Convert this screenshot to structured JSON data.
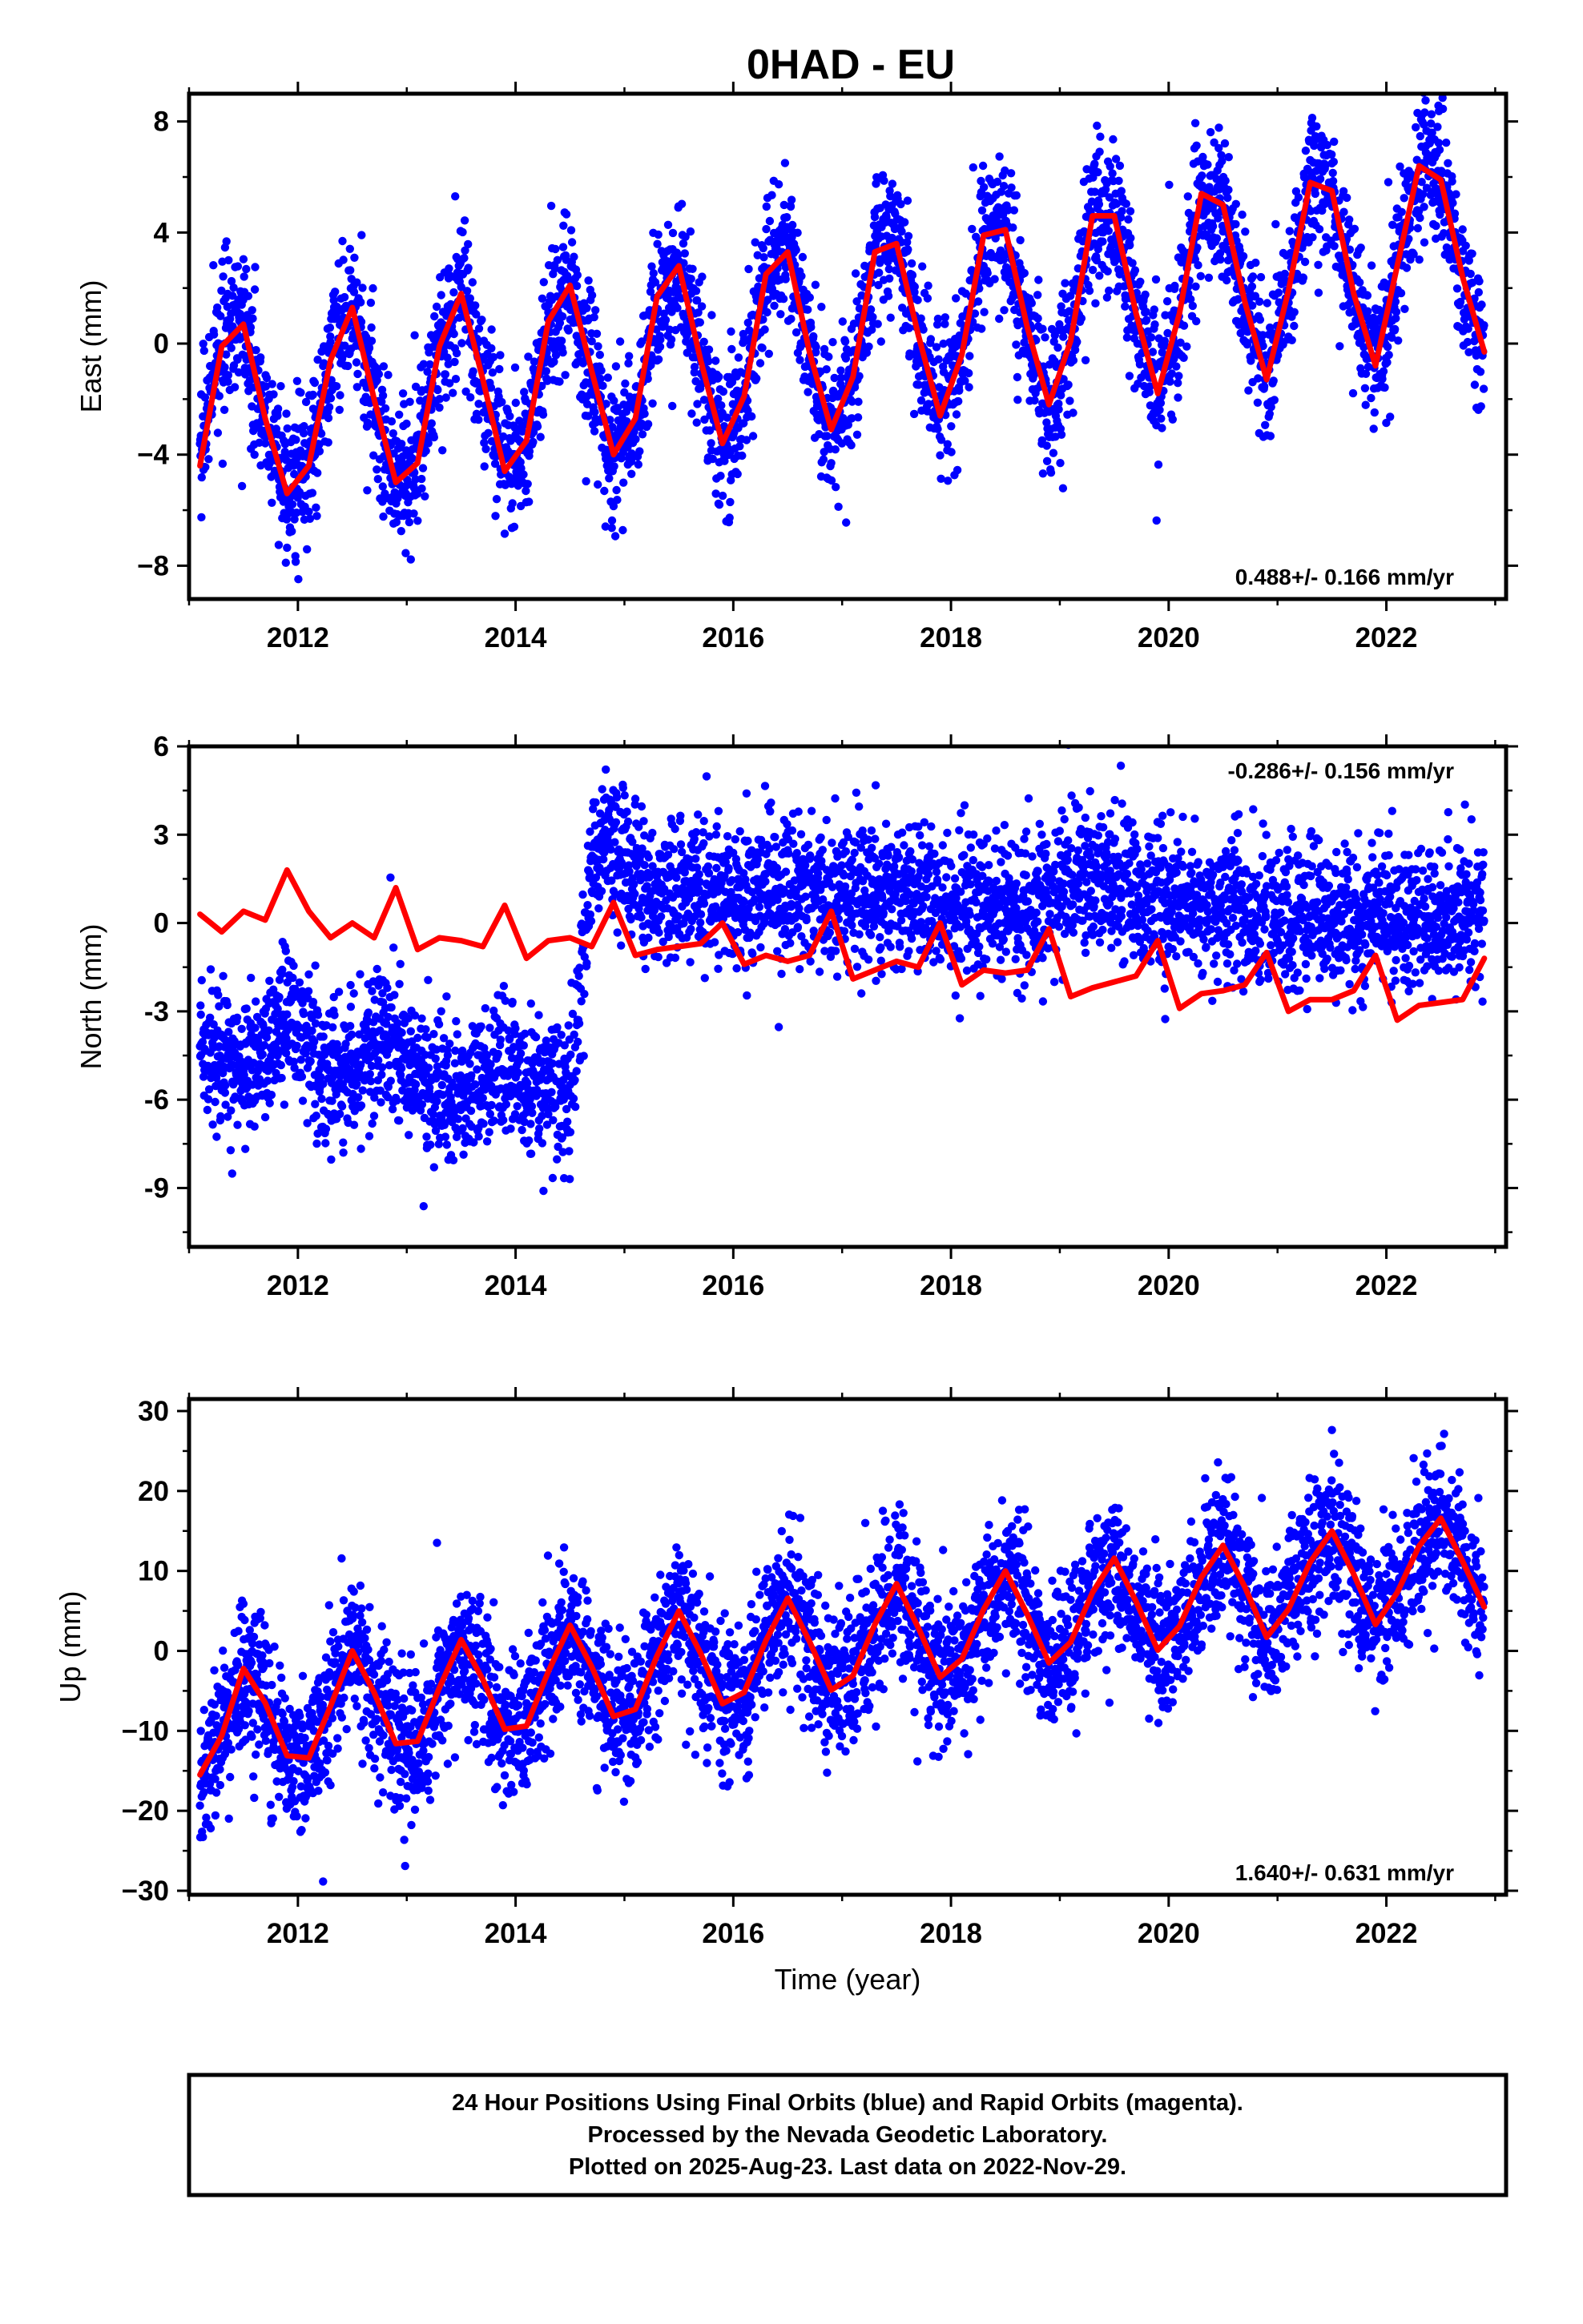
{
  "figure": {
    "title": "0HAD - EU",
    "footer": [
      "24 Hour Positions Using Final Orbits (blue) and Rapid Orbits (magenta).",
      "Processed by the Nevada Geodetic Laboratory.",
      "Plotted on 2025-Aug-23. Last data on 2022-Nov-29."
    ],
    "colors": {
      "final_orbits": "#0000ff",
      "model_fit": "#ff0000",
      "frame": "#000000"
    }
  },
  "chart_data": [
    {
      "type": "scatter",
      "ylabel": "East (mm)",
      "xlabel": "",
      "rate_label": "0.488+/- 0.166 mm/yr",
      "rate_position": "bottom-right",
      "xlim": [
        2011.0,
        2023.1
      ],
      "ylim": [
        -9.2,
        9.0
      ],
      "xticks": [
        2012,
        2014,
        2016,
        2018,
        2020,
        2022
      ],
      "yticks": [
        -8,
        -4,
        0,
        4,
        8
      ],
      "ytick_labels": [
        "−8",
        "−4",
        "0",
        "4",
        "8"
      ],
      "grid": false,
      "data_range": [
        2011.1,
        2022.9
      ],
      "series": [
        {
          "kind": "points",
          "color": "#0000ff",
          "x": [
            2011.1,
            2011.3,
            2011.5,
            2011.7,
            2011.9,
            2012.1,
            2012.3,
            2012.5,
            2012.7,
            2012.9,
            2013.1,
            2013.3,
            2013.5,
            2013.7,
            2013.9,
            2014.1,
            2014.3,
            2014.5,
            2014.7,
            2014.9,
            2015.1,
            2015.3,
            2015.5,
            2015.7,
            2015.9,
            2016.1,
            2016.3,
            2016.5,
            2016.7,
            2016.9,
            2017.1,
            2017.3,
            2017.5,
            2017.7,
            2017.9,
            2018.1,
            2018.3,
            2018.5,
            2018.7,
            2018.9,
            2019.1,
            2019.3,
            2019.5,
            2019.7,
            2019.9,
            2020.1,
            2020.3,
            2020.5,
            2020.7,
            2020.9,
            2021.1,
            2021.3,
            2021.5,
            2021.7,
            2021.9,
            2022.1,
            2022.3,
            2022.5,
            2022.7,
            2022.9
          ],
          "y": [
            -3.6,
            0.2,
            0.7,
            -2.7,
            -5.4,
            -4.4,
            -0.6,
            1.3,
            -2.0,
            -5.0,
            -4.3,
            -0.1,
            1.8,
            -1.3,
            -4.6,
            -3.5,
            0.8,
            2.1,
            -1.0,
            -4.0,
            -2.7,
            1.7,
            2.8,
            -0.6,
            -3.6,
            -1.9,
            2.5,
            3.3,
            -0.3,
            -3.1,
            -1.2,
            3.3,
            3.6,
            0.3,
            -2.6,
            -0.4,
            3.9,
            4.1,
            0.6,
            -2.2,
            0.1,
            4.6,
            4.6,
            1.1,
            -1.8,
            1.1,
            5.4,
            5.0,
            1.5,
            -1.3,
            1.9,
            5.8,
            5.5,
            1.8,
            -0.8,
            2.8,
            6.4,
            5.9,
            2.4,
            -0.1
          ]
        },
        {
          "kind": "model",
          "color": "#ff0000",
          "x": [
            2011.1,
            2011.3,
            2011.5,
            2011.7,
            2011.9,
            2012.1,
            2012.3,
            2012.5,
            2012.7,
            2012.9,
            2013.1,
            2013.3,
            2013.5,
            2013.7,
            2013.9,
            2014.1,
            2014.3,
            2014.5,
            2014.7,
            2014.9,
            2015.1,
            2015.3,
            2015.5,
            2015.7,
            2015.9,
            2016.1,
            2016.3,
            2016.5,
            2016.7,
            2016.9,
            2017.1,
            2017.3,
            2017.5,
            2017.7,
            2017.9,
            2018.1,
            2018.3,
            2018.5,
            2018.7,
            2018.9,
            2019.1,
            2019.3,
            2019.5,
            2019.7,
            2019.9,
            2020.1,
            2020.3,
            2020.5,
            2020.7,
            2020.9,
            2021.1,
            2021.3,
            2021.5,
            2021.7,
            2021.9,
            2022.1,
            2022.3,
            2022.5,
            2022.7,
            2022.9
          ],
          "y": [
            -4.4,
            -0.1,
            0.7,
            -2.7,
            -5.4,
            -4.4,
            -0.6,
            1.3,
            -2.0,
            -5.0,
            -4.3,
            -0.1,
            1.8,
            -1.3,
            -4.6,
            -3.5,
            0.8,
            2.1,
            -1.0,
            -4.0,
            -2.7,
            1.7,
            2.8,
            -0.6,
            -3.6,
            -1.9,
            2.5,
            3.3,
            -0.3,
            -3.1,
            -1.2,
            3.3,
            3.6,
            0.3,
            -2.6,
            -0.4,
            3.9,
            4.1,
            0.6,
            -2.2,
            0.1,
            4.6,
            4.6,
            1.1,
            -1.8,
            1.1,
            5.4,
            5.0,
            1.5,
            -1.3,
            1.9,
            5.8,
            5.5,
            1.8,
            -0.8,
            2.8,
            6.4,
            5.9,
            2.4,
            -0.3
          ]
        }
      ]
    },
    {
      "type": "scatter",
      "ylabel": "North (mm)",
      "xlabel": "",
      "rate_label": "-0.286+/- 0.156 mm/yr",
      "rate_position": "top-right",
      "xlim": [
        2011.0,
        2023.1
      ],
      "ylim": [
        -11.0,
        6.0
      ],
      "xticks": [
        2012,
        2014,
        2016,
        2018,
        2020,
        2022
      ],
      "yticks": [
        -9,
        -6,
        -3,
        0,
        3,
        6
      ],
      "ytick_labels": [
        "-9",
        "-6",
        "-3",
        "0",
        "3",
        "6"
      ],
      "grid": false,
      "data_range": [
        2011.1,
        2022.9
      ],
      "series": [
        {
          "kind": "points",
          "color": "#0000ff",
          "x": [
            2011.1,
            2011.3,
            2011.5,
            2011.7,
            2011.9,
            2012.1,
            2012.3,
            2012.5,
            2012.7,
            2012.9,
            2013.1,
            2013.3,
            2013.5,
            2013.7,
            2013.9,
            2014.1,
            2014.3,
            2014.5,
            2014.7,
            2014.9,
            2015.1,
            2015.3,
            2015.5,
            2015.7,
            2015.9,
            2016.1,
            2016.3,
            2016.5,
            2016.7,
            2016.9,
            2017.1,
            2017.3,
            2017.5,
            2017.7,
            2017.9,
            2018.1,
            2018.3,
            2018.5,
            2018.7,
            2018.9,
            2019.1,
            2019.3,
            2019.5,
            2019.7,
            2019.9,
            2020.1,
            2020.3,
            2020.5,
            2020.7,
            2020.9,
            2021.1,
            2021.3,
            2021.5,
            2021.7,
            2021.9,
            2022.1,
            2022.3,
            2022.5,
            2022.7,
            2022.9
          ],
          "y": [
            -4.0,
            -4.3,
            -5.0,
            -4.5,
            -3.2,
            -4.0,
            -5.6,
            -5.0,
            -4.2,
            -4.0,
            -5.3,
            -5.6,
            -6.0,
            -5.3,
            -4.9,
            -5.5,
            -5.6,
            -5.8,
            2.3,
            2.9,
            1.4,
            0.8,
            0.9,
            1.0,
            0.8,
            0.8,
            1.3,
            1.5,
            1.0,
            1.2,
            0.7,
            0.9,
            0.8,
            0.9,
            0.3,
            0.6,
            0.9,
            0.6,
            0.7,
            0.9,
            1.3,
            1.6,
            1.4,
            1.0,
            0.5,
            0.7,
            0.5,
            0.7,
            0.6,
            0.1,
            0.1,
            0.2,
            0.2,
            0.1,
            0.3,
            0.1,
            0.0,
            0.2,
            0.3,
            0.7
          ]
        },
        {
          "kind": "model",
          "color": "#ff0000",
          "x": [
            2011.1,
            2011.3,
            2011.5,
            2011.7,
            2011.9,
            2012.1,
            2012.3,
            2012.5,
            2012.7,
            2012.9,
            2013.1,
            2013.3,
            2013.5,
            2013.7,
            2013.9,
            2014.1,
            2014.3,
            2014.5,
            2014.7,
            2014.9,
            2015.1,
            2015.3,
            2015.5,
            2015.7,
            2015.9,
            2016.1,
            2016.3,
            2016.5,
            2016.7,
            2016.9,
            2017.1,
            2017.3,
            2017.5,
            2017.7,
            2017.9,
            2018.1,
            2018.3,
            2018.5,
            2018.7,
            2018.9,
            2019.1,
            2019.3,
            2019.5,
            2019.7,
            2019.9,
            2020.1,
            2020.3,
            2020.5,
            2020.7,
            2020.9,
            2021.1,
            2021.3,
            2021.5,
            2021.7,
            2021.9,
            2022.1,
            2022.3,
            2022.5,
            2022.7,
            2022.9
          ],
          "y": [
            0.3,
            -0.3,
            0.4,
            0.1,
            1.8,
            0.4,
            -0.5,
            0.0,
            -0.5,
            1.2,
            -0.9,
            -0.5,
            -0.6,
            -0.8,
            0.6,
            -1.2,
            -0.6,
            -0.5,
            -0.8,
            0.7,
            -1.1,
            -0.9,
            -0.8,
            -0.7,
            0.0,
            -1.4,
            -1.1,
            -1.3,
            -1.1,
            0.4,
            -1.9,
            -1.6,
            -1.3,
            -1.5,
            0.0,
            -2.1,
            -1.6,
            -1.7,
            -1.6,
            -0.2,
            -2.5,
            -2.2,
            -2.0,
            -1.8,
            -0.6,
            -2.9,
            -2.4,
            -2.3,
            -2.1,
            -1.0,
            -3.0,
            -2.6,
            -2.6,
            -2.3,
            -1.1,
            -3.3,
            -2.8,
            -2.7,
            -2.6,
            -1.2
          ]
        }
      ]
    },
    {
      "type": "scatter",
      "ylabel": "Up (mm)",
      "xlabel": "Time (year)",
      "rate_label": "1.640+/- 0.631 mm/yr",
      "rate_position": "bottom-right",
      "xlim": [
        2011.0,
        2023.1
      ],
      "ylim": [
        -30.5,
        31.5
      ],
      "xticks": [
        2012,
        2014,
        2016,
        2018,
        2020,
        2022
      ],
      "yticks": [
        -30,
        -20,
        -10,
        0,
        10,
        20,
        30
      ],
      "ytick_labels": [
        "−30",
        "−20",
        "−10",
        "0",
        "10",
        "20",
        "30"
      ],
      "grid": false,
      "data_range": [
        2011.1,
        2022.9
      ],
      "series": [
        {
          "kind": "points",
          "color": "#0000ff",
          "x": [
            2011.1,
            2011.3,
            2011.5,
            2011.7,
            2011.9,
            2012.1,
            2012.3,
            2012.5,
            2012.7,
            2012.9,
            2013.1,
            2013.3,
            2013.5,
            2013.7,
            2013.9,
            2014.1,
            2014.3,
            2014.5,
            2014.7,
            2014.9,
            2015.1,
            2015.3,
            2015.5,
            2015.7,
            2015.9,
            2016.1,
            2016.3,
            2016.5,
            2016.7,
            2016.9,
            2017.1,
            2017.3,
            2017.5,
            2017.7,
            2017.9,
            2018.1,
            2018.3,
            2018.5,
            2018.7,
            2018.9,
            2019.1,
            2019.3,
            2019.5,
            2019.7,
            2019.9,
            2020.1,
            2020.3,
            2020.5,
            2020.7,
            2020.9,
            2021.1,
            2021.3,
            2021.5,
            2021.7,
            2021.9,
            2022.1,
            2022.3,
            2022.5,
            2022.7,
            2022.9
          ],
          "y": [
            -16.5,
            -10.6,
            -2.2,
            -6.5,
            -13.1,
            -13.4,
            -6.9,
            0.0,
            -5.2,
            -11.6,
            -11.3,
            -4.6,
            1.4,
            -3.6,
            -9.8,
            -9.4,
            -2.6,
            3.2,
            -2.0,
            -8.2,
            -7.3,
            -0.6,
            5.0,
            -0.3,
            -6.6,
            -5.2,
            1.3,
            6.6,
            1.2,
            -4.9,
            -3.1,
            3.3,
            8.4,
            2.9,
            -3.3,
            -1.0,
            5.2,
            10.0,
            4.6,
            -1.5,
            1.1,
            7.3,
            11.6,
            6.2,
            0.1,
            3.1,
            9.2,
            13.2,
            8.0,
            1.7,
            5.2,
            11.1,
            15.0,
            9.6,
            3.3,
            7.3,
            13.1,
            16.6,
            11.2,
            5.0
          ]
        },
        {
          "kind": "model",
          "color": "#ff0000",
          "x": [
            2011.1,
            2011.3,
            2011.5,
            2011.7,
            2011.9,
            2012.1,
            2012.3,
            2012.5,
            2012.7,
            2012.9,
            2013.1,
            2013.3,
            2013.5,
            2013.7,
            2013.9,
            2014.1,
            2014.3,
            2014.5,
            2014.7,
            2014.9,
            2015.1,
            2015.3,
            2015.5,
            2015.7,
            2015.9,
            2016.1,
            2016.3,
            2016.5,
            2016.7,
            2016.9,
            2017.1,
            2017.3,
            2017.5,
            2017.7,
            2017.9,
            2018.1,
            2018.3,
            2018.5,
            2018.7,
            2018.9,
            2019.1,
            2019.3,
            2019.5,
            2019.7,
            2019.9,
            2020.1,
            2020.3,
            2020.5,
            2020.7,
            2020.9,
            2021.1,
            2021.3,
            2021.5,
            2021.7,
            2021.9,
            2022.1,
            2022.3,
            2022.5,
            2022.7,
            2022.9
          ],
          "y": [
            -15.5,
            -10.6,
            -2.2,
            -6.5,
            -13.1,
            -13.4,
            -6.9,
            0.0,
            -5.2,
            -11.6,
            -11.3,
            -4.6,
            1.4,
            -3.6,
            -9.8,
            -9.4,
            -2.6,
            3.2,
            -2.0,
            -8.2,
            -7.3,
            -0.6,
            5.0,
            -0.3,
            -6.6,
            -5.2,
            1.3,
            6.6,
            1.2,
            -4.9,
            -3.1,
            3.3,
            8.4,
            2.9,
            -3.3,
            -1.0,
            5.2,
            10.0,
            4.6,
            -1.5,
            1.1,
            7.3,
            11.6,
            6.2,
            0.1,
            3.1,
            9.2,
            13.2,
            8.0,
            1.7,
            5.2,
            11.1,
            15.0,
            9.6,
            3.3,
            7.3,
            13.1,
            16.6,
            11.2,
            5.5
          ]
        }
      ]
    }
  ]
}
